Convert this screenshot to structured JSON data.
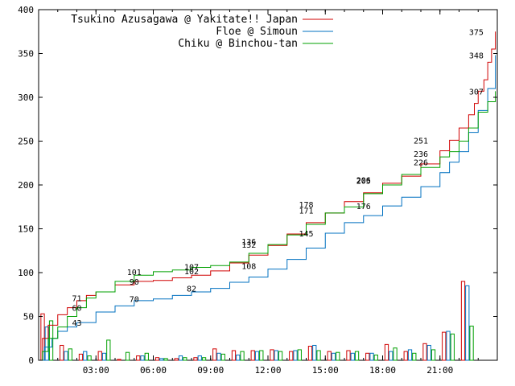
{
  "chart_data": {
    "type": "line",
    "title": "",
    "xlabel": "",
    "ylabel": "",
    "xlim": [
      0,
      24
    ],
    "ylim": [
      0,
      400
    ],
    "yticks": [
      0,
      50,
      100,
      150,
      200,
      250,
      300,
      350,
      400
    ],
    "xticks": [
      {
        "x": 3,
        "label": "03:00"
      },
      {
        "x": 6,
        "label": "06:00"
      },
      {
        "x": 9,
        "label": "09:00"
      },
      {
        "x": 12,
        "label": "12:00"
      },
      {
        "x": 15,
        "label": "15:00"
      },
      {
        "x": 18,
        "label": "18:00"
      },
      {
        "x": 21,
        "label": "21:00"
      }
    ],
    "legend_position": "top-left",
    "series": [
      {
        "name": "Tsukino Azusagawa @ Yakitate!! Japan",
        "color": "#d00000",
        "x": [
          0,
          0.2,
          0.5,
          1,
          1.5,
          2,
          2.5,
          3,
          4,
          5,
          6,
          7,
          8,
          9,
          10,
          11,
          12,
          13,
          14,
          15,
          16,
          17,
          18,
          19,
          20,
          21,
          21.5,
          22,
          22.5,
          22.8,
          23,
          23.3,
          23.5,
          23.7,
          23.9
        ],
        "y": [
          0,
          25,
          40,
          52,
          60,
          68,
          74,
          78,
          86,
          90,
          91,
          94,
          97,
          102,
          111,
          120,
          131,
          144,
          157,
          168,
          181,
          191,
          202,
          210,
          224,
          239,
          251,
          265,
          280,
          293,
          307,
          320,
          340,
          355,
          375
        ]
      },
      {
        "name": "Floe @ Simoun",
        "color": "#0070c0",
        "x": [
          0,
          0.3,
          0.7,
          1,
          1.5,
          2,
          3,
          4,
          5,
          6,
          7,
          8,
          9,
          10,
          11,
          12,
          13,
          14,
          15,
          16,
          17,
          18,
          19,
          20,
          21,
          21.5,
          22,
          22.5,
          23,
          23.5,
          23.9
        ],
        "y": [
          0,
          15,
          25,
          33,
          38,
          43,
          55,
          62,
          68,
          70,
          74,
          78,
          82,
          89,
          95,
          104,
          115,
          128,
          145,
          157,
          165,
          176,
          186,
          198,
          214,
          226,
          238,
          260,
          285,
          310,
          348
        ]
      },
      {
        "name": "Chiku @ Binchou-tan",
        "color": "#00a000",
        "x": [
          0,
          0.2,
          0.5,
          1,
          1.5,
          2,
          2.5,
          3,
          4,
          5,
          6,
          7,
          8,
          9,
          10,
          11,
          12,
          13,
          14,
          15,
          16,
          17,
          18,
          19,
          20,
          21,
          21.5,
          22,
          22.5,
          23,
          23.5,
          23.9
        ],
        "y": [
          0,
          10,
          25,
          38,
          50,
          60,
          71,
          78,
          90,
          97,
          101,
          103,
          106,
          108,
          112,
          122,
          132,
          143,
          155,
          168,
          175,
          190,
          200,
          212,
          220,
          232,
          238,
          250,
          265,
          283,
          295,
          307
        ]
      }
    ],
    "annotations": [
      {
        "x": 2.0,
        "y": 71,
        "label": "71"
      },
      {
        "x": 2.0,
        "y": 60,
        "label": "60"
      },
      {
        "x": 2.0,
        "y": 43,
        "label": "43"
      },
      {
        "x": 5.0,
        "y": 101,
        "label": "101"
      },
      {
        "x": 5.0,
        "y": 90,
        "label": "90"
      },
      {
        "x": 5.0,
        "y": 70,
        "label": "70"
      },
      {
        "x": 8.0,
        "y": 107,
        "label": "107"
      },
      {
        "x": 8.0,
        "y": 102,
        "label": "102"
      },
      {
        "x": 8.0,
        "y": 82,
        "label": "82"
      },
      {
        "x": 11.0,
        "y": 136,
        "label": "136"
      },
      {
        "x": 11.0,
        "y": 132,
        "label": "132"
      },
      {
        "x": 11.0,
        "y": 108,
        "label": "108"
      },
      {
        "x": 14.0,
        "y": 178,
        "label": "178"
      },
      {
        "x": 14.0,
        "y": 171,
        "label": "171"
      },
      {
        "x": 14.0,
        "y": 145,
        "label": "145"
      },
      {
        "x": 17.0,
        "y": 206,
        "label": "206"
      },
      {
        "x": 17.0,
        "y": 205,
        "label": "205"
      },
      {
        "x": 17.0,
        "y": 176,
        "label": "176"
      },
      {
        "x": 20.0,
        "y": 251,
        "label": "251"
      },
      {
        "x": 20.0,
        "y": 236,
        "label": "236"
      },
      {
        "x": 20.0,
        "y": 226,
        "label": "226"
      },
      {
        "x": 22.9,
        "y": 375,
        "label": "375"
      },
      {
        "x": 22.9,
        "y": 348,
        "label": "348"
      },
      {
        "x": 22.9,
        "y": 307,
        "label": "307"
      }
    ],
    "hourly_counts": {
      "hours": [
        0,
        1,
        2,
        3,
        4,
        5,
        6,
        7,
        8,
        9,
        10,
        11,
        12,
        13,
        14,
        15,
        16,
        17,
        18,
        19,
        20,
        21,
        22,
        23
      ],
      "series": [
        {
          "name": "Tsukino Azusagawa @ Yakitate!! Japan",
          "color": "#d00000",
          "values": [
            53,
            17,
            7,
            10,
            1,
            5,
            3,
            2,
            3,
            13,
            11,
            11,
            12,
            10,
            16,
            10,
            11,
            8,
            18,
            10,
            19,
            32,
            90,
            0
          ]
        },
        {
          "name": "Floe @ Simoun",
          "color": "#0070c0",
          "values": [
            38,
            10,
            10,
            8,
            0,
            5,
            2,
            5,
            5,
            8,
            6,
            10,
            11,
            11,
            17,
            8,
            8,
            8,
            10,
            12,
            17,
            33,
            85,
            0
          ]
        },
        {
          "name": "Chiku @ Binchou-tan",
          "color": "#00a000",
          "values": [
            45,
            13,
            5,
            23,
            9,
            8,
            2,
            3,
            3,
            7,
            10,
            11,
            10,
            12,
            11,
            9,
            10,
            6,
            14,
            8,
            12,
            30,
            39,
            0
          ]
        }
      ]
    }
  }
}
